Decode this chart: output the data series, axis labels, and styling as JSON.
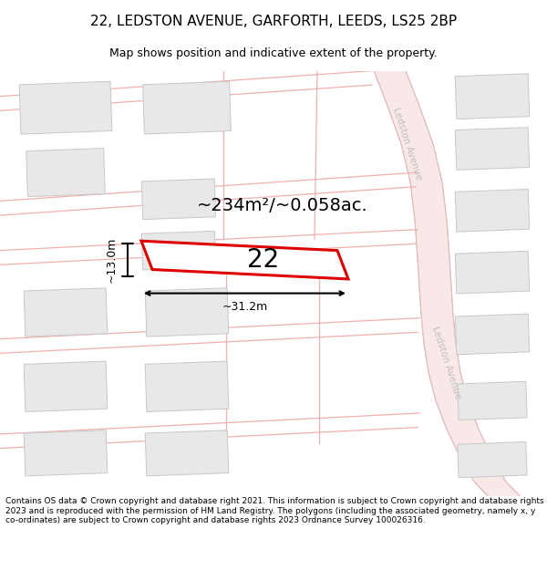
{
  "title": "22, LEDSTON AVENUE, GARFORTH, LEEDS, LS25 2BP",
  "subtitle": "Map shows position and indicative extent of the property.",
  "area_label": "~234m²/~0.058ac.",
  "width_label": "~31.2m",
  "height_label": "~13.0m",
  "number_label": "22",
  "footer": "Contains OS data © Crown copyright and database right 2021. This information is subject to Crown copyright and database rights 2023 and is reproduced with the permission of HM Land Registry. The polygons (including the associated geometry, namely x, y co-ordinates) are subject to Crown copyright and database rights 2023 Ordnance Survey 100026316.",
  "bg_color": "#ffffff",
  "road_fill": "#f9e8e8",
  "road_edge": "#f0b0b0",
  "road_gray_edge": "#cccccc",
  "building_fill": "#e8e8e8",
  "building_edge": "#c8c8c8",
  "plot_fill": "#ffffff",
  "plot_edge": "#dd0000",
  "road_label_color": "#c0c0c0",
  "title_fontsize": 11,
  "subtitle_fontsize": 9,
  "area_fontsize": 14,
  "number_fontsize": 20,
  "dim_fontsize": 9,
  "footer_fontsize": 6.5
}
